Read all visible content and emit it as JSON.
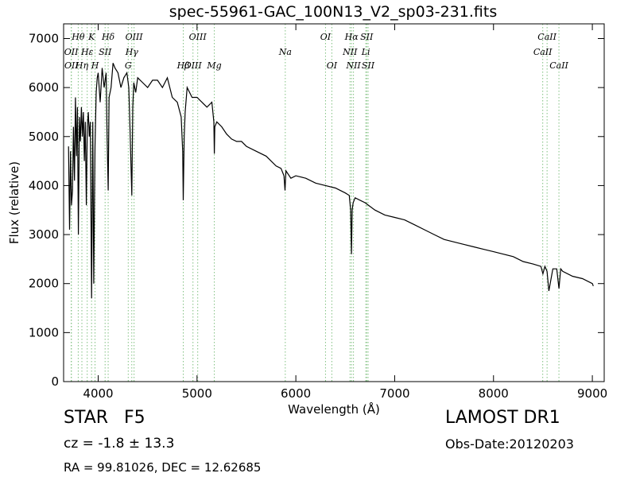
{
  "chart_data": {
    "type": "line",
    "title": "spec-55961-GAC_100N13_V2_sp03-231.fits",
    "xlabel": "Wavelength (Å)",
    "ylabel": "Flux (relative)",
    "xlim": [
      3650,
      9120
    ],
    "ylim": [
      0,
      7300
    ],
    "xticks": [
      4000,
      5000,
      6000,
      7000,
      8000,
      9000
    ],
    "yticks": [
      0,
      1000,
      2000,
      3000,
      4000,
      5000,
      6000,
      7000
    ],
    "grid": false,
    "legend": "none",
    "series": [
      {
        "x": [
          3700,
          3710,
          3720,
          3730,
          3740,
          3750,
          3760,
          3770,
          3780,
          3790,
          3800,
          3810,
          3820,
          3830,
          3840,
          3850,
          3860,
          3870,
          3880,
          3890,
          3900,
          3910,
          3920,
          3933,
          3945,
          3955,
          3968,
          3980,
          3990,
          4000,
          4020,
          4040,
          4060,
          4080,
          4090,
          4101,
          4110,
          4130,
          4150,
          4170,
          4200,
          4230,
          4260,
          4290,
          4310,
          4320,
          4340,
          4350,
          4360,
          4380,
          4400,
          4450,
          4500,
          4550,
          4600,
          4650,
          4700,
          4750,
          4800,
          4840,
          4855,
          4861,
          4870,
          4880,
          4900,
          4950,
          5000,
          5050,
          5100,
          5150,
          5170,
          5175,
          5180,
          5200,
          5250,
          5300,
          5350,
          5400,
          5450,
          5500,
          5600,
          5700,
          5800,
          5850,
          5880,
          5890,
          5900,
          5950,
          6000,
          6100,
          6200,
          6300,
          6400,
          6500,
          6540,
          6555,
          6563,
          6570,
          6580,
          6600,
          6700,
          6800,
          6900,
          7000,
          7100,
          7200,
          7300,
          7400,
          7500,
          7600,
          7700,
          7800,
          7900,
          8000,
          8100,
          8200,
          8300,
          8400,
          8480,
          8500,
          8520,
          8542,
          8560,
          8600,
          8640,
          8662,
          8680,
          8700,
          8800,
          8900,
          9000,
          9010
        ],
        "y": [
          4800,
          3100,
          4700,
          3600,
          3900,
          5200,
          4100,
          5800,
          4600,
          5600,
          3000,
          5400,
          4900,
          5600,
          5000,
          5500,
          4500,
          5300,
          3600,
          5200,
          5500,
          5000,
          5300,
          1700,
          5300,
          2000,
          4800,
          5900,
          6200,
          6300,
          5700,
          6400,
          6000,
          6300,
          5000,
          3900,
          5800,
          6000,
          6500,
          6400,
          6300,
          6000,
          6200,
          6300,
          6000,
          5300,
          3800,
          5600,
          6100,
          5900,
          6200,
          6100,
          6000,
          6150,
          6150,
          6000,
          6200,
          5800,
          5700,
          5400,
          4700,
          3700,
          5000,
          5500,
          6000,
          5800,
          5800,
          5700,
          5600,
          5700,
          5300,
          4650,
          5200,
          5300,
          5200,
          5050,
          4950,
          4900,
          4900,
          4800,
          4700,
          4600,
          4400,
          4350,
          4200,
          3900,
          4300,
          4150,
          4200,
          4150,
          4050,
          4000,
          3950,
          3850,
          3800,
          3500,
          2600,
          3500,
          3650,
          3750,
          3650,
          3500,
          3400,
          3350,
          3300,
          3200,
          3100,
          3000,
          2900,
          2850,
          2800,
          2750,
          2700,
          2650,
          2600,
          2550,
          2450,
          2400,
          2350,
          2200,
          2350,
          2250,
          1850,
          2300,
          2300,
          1900,
          2300,
          2250,
          2150,
          2100,
          2000,
          1950
        ]
      }
    ],
    "annotations": {
      "note": "",
      "lines": [
        {
          "label": "Hθ",
          "x": 3798,
          "row": 0
        },
        {
          "label": "K",
          "x": 3933,
          "row": 0
        },
        {
          "label": "Hδ",
          "x": 4101,
          "row": 0
        },
        {
          "label": "OIII",
          "x": 4363,
          "row": 0
        },
        {
          "label": "OIII",
          "x": 5007,
          "row": 0
        },
        {
          "label": "OI",
          "x": 6300,
          "row": 0
        },
        {
          "label": "Hα",
          "x": 6563,
          "row": 0
        },
        {
          "label": "SII",
          "x": 6717,
          "row": 0
        },
        {
          "label": "CaII",
          "x": 8542,
          "row": 0
        },
        {
          "label": "OII",
          "x": 3727,
          "row": 1
        },
        {
          "label": "Hε",
          "x": 3889,
          "row": 1
        },
        {
          "label": "SII",
          "x": 4070,
          "row": 1
        },
        {
          "label": "Hγ",
          "x": 4340,
          "row": 1
        },
        {
          "label": "Na",
          "x": 5893,
          "row": 1
        },
        {
          "label": "NII",
          "x": 6548,
          "row": 1
        },
        {
          "label": "Li",
          "x": 6708,
          "row": 1
        },
        {
          "label": "CaII",
          "x": 8498,
          "row": 1
        },
        {
          "label": "OII",
          "x": 3729,
          "row": 2
        },
        {
          "label": "Hη",
          "x": 3835,
          "row": 2
        },
        {
          "label": "H",
          "x": 3968,
          "row": 2
        },
        {
          "label": "G",
          "x": 4304,
          "row": 2
        },
        {
          "label": "Hβ",
          "x": 4861,
          "row": 2
        },
        {
          "label": "OIII",
          "x": 4959,
          "row": 2
        },
        {
          "label": "Mg",
          "x": 5175,
          "row": 2
        },
        {
          "label": "OI",
          "x": 6364,
          "row": 2
        },
        {
          "label": "NII",
          "x": 6583,
          "row": 2
        },
        {
          "label": "SII",
          "x": 6731,
          "row": 2
        },
        {
          "label": "CaII",
          "x": 8662,
          "row": 2
        }
      ]
    }
  },
  "footer": {
    "object_class": "STAR",
    "subclass": "F5",
    "survey": "LAMOST DR1",
    "cz": "cz = -1.8 ± 13.3",
    "obs_date": "Obs-Date:20120203",
    "coords": "RA = 99.81026, DEC = 12.62685"
  },
  "colors": {
    "spectrum": "#000000",
    "line_marker": "#80c080",
    "axes": "#000000",
    "background": "#ffffff"
  }
}
